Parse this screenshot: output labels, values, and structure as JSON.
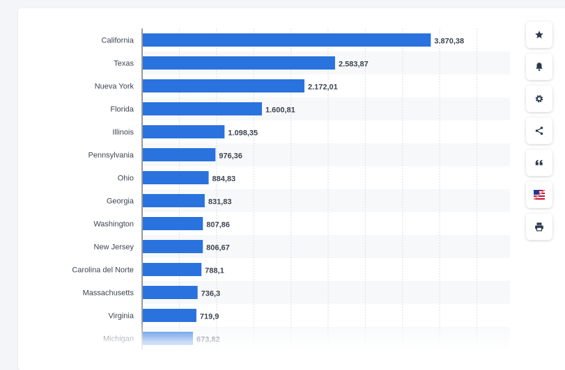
{
  "chart_data": {
    "type": "bar",
    "orientation": "horizontal",
    "categories": [
      "California",
      "Texas",
      "Nueva York",
      "Florida",
      "Illinois",
      "Pennsylvania",
      "Ohio",
      "Georgia",
      "Washington",
      "New Jersey",
      "Carolina del Norte",
      "Massachusetts",
      "Virginia",
      "Michigan"
    ],
    "values": [
      3870.38,
      2583.87,
      2172.01,
      1600.81,
      1098.35,
      976.36,
      884.83,
      831.83,
      807.86,
      806.67,
      788.1,
      736.3,
      719.9,
      673.82
    ],
    "value_labels": [
      "3.870,38",
      "2.583,87",
      "2.172,01",
      "1.600,81",
      "1.098,35",
      "976,36",
      "884,83",
      "831,83",
      "807,86",
      "806,67",
      "788,1",
      "736,3",
      "719,9",
      "673,82"
    ],
    "xlim": [
      0,
      5000
    ],
    "grid": true,
    "bar_color": "#2a72de"
  },
  "toolbar": {
    "buttons": [
      {
        "name": "favorite-button",
        "icon": "star-icon"
      },
      {
        "name": "notification-button",
        "icon": "bell-icon"
      },
      {
        "name": "settings-button",
        "icon": "gear-icon"
      },
      {
        "name": "share-button",
        "icon": "share-icon"
      },
      {
        "name": "cite-button",
        "icon": "quote-icon"
      },
      {
        "name": "language-button",
        "icon": "flag-icon"
      },
      {
        "name": "print-button",
        "icon": "printer-icon"
      }
    ]
  }
}
